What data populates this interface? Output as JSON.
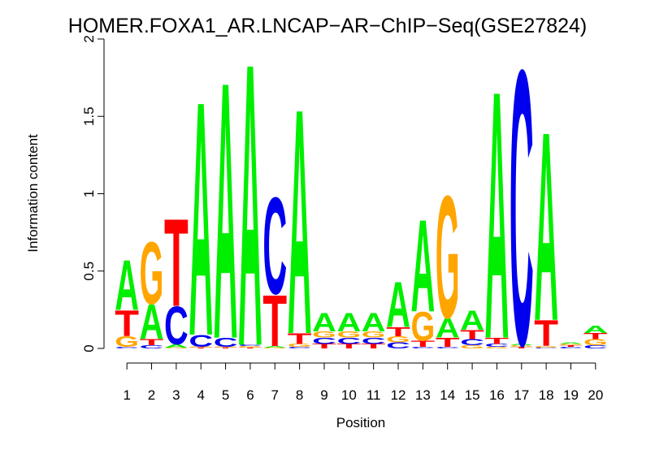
{
  "chart_data": {
    "type": "sequence-logo",
    "title": "HOMER.FOXA1_AR.LNCAP−AR−ChIP−Seq(GSE27824)",
    "xlabel": "Position",
    "ylabel": "Information content",
    "ylim": [
      0,
      2
    ],
    "yticks": [
      "0",
      "0.5",
      "1",
      "1.5",
      "2"
    ],
    "positions": [
      "1",
      "2",
      "3",
      "4",
      "5",
      "6",
      "7",
      "8",
      "9",
      "10",
      "11",
      "12",
      "13",
      "14",
      "15",
      "16",
      "17",
      "18",
      "19",
      "20"
    ],
    "colors": {
      "A": "#00ee00",
      "C": "#0000ee",
      "G": "#ffa500",
      "T": "#ff0000"
    },
    "stacks": [
      [
        [
          "C",
          0.01
        ],
        [
          "G",
          0.07
        ],
        [
          "T",
          0.17
        ],
        [
          "A",
          0.33
        ]
      ],
      [
        [
          "C",
          0.02
        ],
        [
          "T",
          0.04
        ],
        [
          "A",
          0.23
        ],
        [
          "G",
          0.41
        ]
      ],
      [
        [
          "G",
          0.005
        ],
        [
          "A",
          0.02
        ],
        [
          "C",
          0.25
        ],
        [
          "T",
          0.58
        ]
      ],
      [
        [
          "T",
          0.005
        ],
        [
          "G",
          0.005
        ],
        [
          "C",
          0.08
        ],
        [
          "A",
          1.55
        ]
      ],
      [
        [
          "T",
          0.005
        ],
        [
          "G",
          0.005
        ],
        [
          "C",
          0.06
        ],
        [
          "A",
          1.7
        ]
      ],
      [
        [
          "T",
          0.005
        ],
        [
          "G",
          0.01
        ],
        [
          "C",
          0.01
        ],
        [
          "A",
          1.87
        ]
      ],
      [
        [
          "G",
          0.005
        ],
        [
          "A",
          0.01
        ],
        [
          "T",
          0.34
        ],
        [
          "C",
          0.64
        ]
      ],
      [
        [
          "C",
          0.01
        ],
        [
          "G",
          0.02
        ],
        [
          "T",
          0.07
        ],
        [
          "A",
          1.49
        ]
      ],
      [
        [
          "T",
          0.03
        ],
        [
          "C",
          0.04
        ],
        [
          "G",
          0.04
        ],
        [
          "A",
          0.12
        ]
      ],
      [
        [
          "T",
          0.03
        ],
        [
          "C",
          0.04
        ],
        [
          "G",
          0.04
        ],
        [
          "A",
          0.12
        ]
      ],
      [
        [
          "T",
          0.03
        ],
        [
          "C",
          0.04
        ],
        [
          "G",
          0.04
        ],
        [
          "A",
          0.12
        ]
      ],
      [
        [
          "C",
          0.04
        ],
        [
          "G",
          0.04
        ],
        [
          "T",
          0.06
        ],
        [
          "A",
          0.3
        ]
      ],
      [
        [
          "C",
          0.01
        ],
        [
          "T",
          0.04
        ],
        [
          "G",
          0.19
        ],
        [
          "A",
          0.61
        ]
      ],
      [
        [
          "C",
          0.01
        ],
        [
          "T",
          0.06
        ],
        [
          "A",
          0.13
        ],
        [
          "G",
          0.81
        ]
      ],
      [
        [
          "G",
          0.02
        ],
        [
          "C",
          0.04
        ],
        [
          "T",
          0.06
        ],
        [
          "A",
          0.13
        ]
      ],
      [
        [
          "G",
          0.01
        ],
        [
          "C",
          0.02
        ],
        [
          "T",
          0.04
        ],
        [
          "A",
          1.64
        ]
      ],
      [
        [
          "T",
          0.01
        ],
        [
          "G",
          0.01
        ],
        [
          "A",
          0.01
        ],
        [
          "C",
          1.82
        ]
      ],
      [
        [
          "C",
          0.005
        ],
        [
          "G",
          0.01
        ],
        [
          "T",
          0.17
        ],
        [
          "A",
          1.25
        ]
      ],
      [
        [
          "C",
          0.01
        ],
        [
          "T",
          0.01
        ],
        [
          "G",
          0.01
        ],
        [
          "A",
          0.01
        ]
      ],
      [
        [
          "C",
          0.02
        ],
        [
          "G",
          0.04
        ],
        [
          "T",
          0.04
        ],
        [
          "A",
          0.05
        ]
      ]
    ]
  }
}
